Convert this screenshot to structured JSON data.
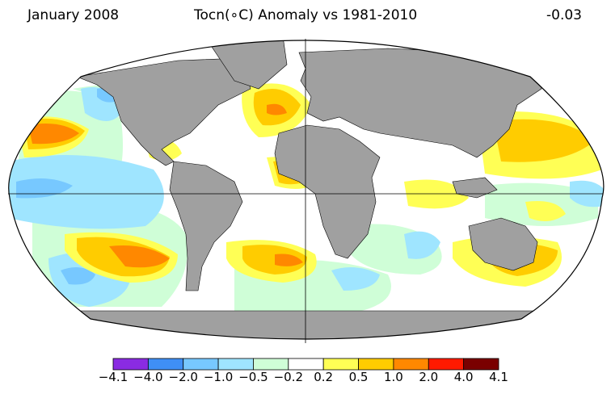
{
  "header": {
    "date": "January 2008",
    "title": "Tocn(∘C) Anomaly vs 1981-2010",
    "global_mean": "-0.03"
  },
  "map": {
    "projection": "robinson",
    "land_color": "#a0a0a0",
    "ocean_neutral_color": "#ffffff"
  },
  "colorbar": {
    "colors": [
      "#8a2be2",
      "#3f8ff5",
      "#77c8ff",
      "#9fe5ff",
      "#cffed7",
      "#ffffff",
      "#ffff55",
      "#ffcc00",
      "#ff8800",
      "#ff1a00",
      "#7a0000"
    ],
    "labels": [
      "−4.1",
      "−4.0",
      "−2.0",
      "−1.0",
      "−0.5",
      "−0.2",
      "0.2",
      "0.5",
      "1.0",
      "2.0",
      "4.0",
      "4.1"
    ]
  }
}
